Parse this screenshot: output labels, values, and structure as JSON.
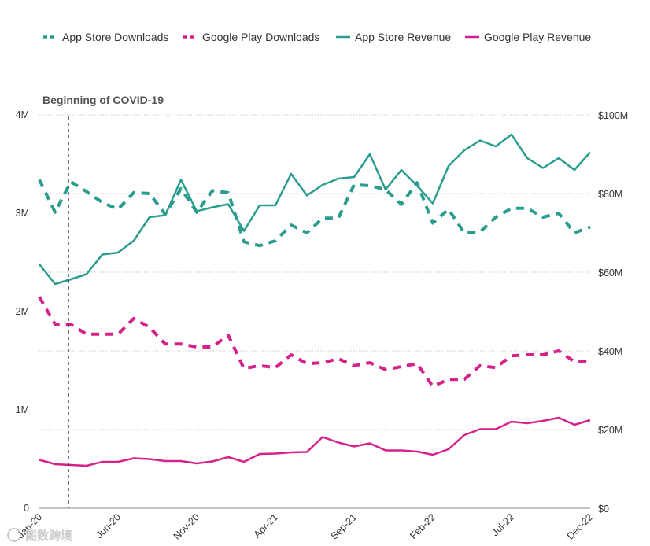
{
  "chart_data": {
    "type": "line",
    "title": "",
    "annotation": "Beginning of COVID-19",
    "annotation_index": 2,
    "x": [
      "Jan-20",
      "Feb-20",
      "Mar-20",
      "Apr-20",
      "May-20",
      "Jun-20",
      "Jul-20",
      "Aug-20",
      "Sep-20",
      "Oct-20",
      "Nov-20",
      "Dec-20",
      "Jan-21",
      "Feb-21",
      "Mar-21",
      "Apr-21",
      "May-21",
      "Jun-21",
      "Jul-21",
      "Aug-21",
      "Sep-21",
      "Oct-21",
      "Nov-21",
      "Dec-21",
      "Jan-22",
      "Feb-22",
      "Mar-22",
      "Apr-22",
      "May-22",
      "Jun-22",
      "Jul-22",
      "Aug-22",
      "Sep-22",
      "Oct-22",
      "Nov-22",
      "Dec-22"
    ],
    "x_tick_labels": [
      {
        "index": 0,
        "label": "Jan-20"
      },
      {
        "index": 5,
        "label": "Jun-20"
      },
      {
        "index": 10,
        "label": "Nov-20"
      },
      {
        "index": 15,
        "label": "Apr-21"
      },
      {
        "index": 20,
        "label": "Sep-21"
      },
      {
        "index": 25,
        "label": "Feb-22"
      },
      {
        "index": 30,
        "label": "Jul-22"
      },
      {
        "index": 35,
        "label": "Dec-22"
      }
    ],
    "y_left": {
      "range": [
        0,
        4000000
      ],
      "ticks": [
        0,
        1000000,
        2000000,
        3000000,
        4000000
      ],
      "tick_labels": [
        "0",
        "1M",
        "2M",
        "3M",
        "4M"
      ]
    },
    "y_right": {
      "range": [
        0,
        100000000
      ],
      "ticks": [
        0,
        20000000,
        40000000,
        60000000,
        80000000,
        100000000
      ],
      "tick_labels": [
        "$0",
        "$20M",
        "$40M",
        "$60M",
        "$80M",
        "$100M"
      ]
    },
    "grid": true,
    "legend_position": "top-left",
    "series": [
      {
        "name": "App Store Downloads",
        "axis": "left",
        "style": "dashed",
        "color": "#2a9d8f",
        "values": [
          3340000,
          3010000,
          3320000,
          3220000,
          3110000,
          3040000,
          3210000,
          3200000,
          2990000,
          3250000,
          3010000,
          3230000,
          3210000,
          2710000,
          2670000,
          2720000,
          2880000,
          2800000,
          2950000,
          2950000,
          3290000,
          3280000,
          3240000,
          3090000,
          3310000,
          2900000,
          3040000,
          2800000,
          2810000,
          2960000,
          3050000,
          3050000,
          2960000,
          3000000,
          2800000,
          2860000
        ]
      },
      {
        "name": "Google Play Downloads",
        "axis": "left",
        "style": "dashed",
        "color": "#d6218b",
        "values": [
          2150000,
          1870000,
          1870000,
          1770000,
          1770000,
          1770000,
          1930000,
          1840000,
          1670000,
          1670000,
          1640000,
          1640000,
          1760000,
          1420000,
          1450000,
          1430000,
          1560000,
          1470000,
          1480000,
          1520000,
          1450000,
          1480000,
          1410000,
          1440000,
          1470000,
          1240000,
          1310000,
          1310000,
          1450000,
          1430000,
          1550000,
          1560000,
          1560000,
          1600000,
          1490000,
          1490000
        ]
      },
      {
        "name": "App Store Revenue",
        "axis": "right",
        "style": "solid",
        "color": "#2a9d8f",
        "values": [
          62000000,
          57000000,
          58200000,
          59500000,
          64500000,
          65000000,
          68000000,
          74000000,
          74500000,
          83500000,
          75500000,
          76500000,
          77300000,
          70500000,
          77000000,
          77000000,
          85000000,
          79500000,
          82200000,
          83800000,
          84200000,
          90000000,
          81000000,
          86000000,
          82000000,
          77500000,
          87000000,
          91000000,
          93500000,
          92000000,
          95000000,
          89000000,
          86500000,
          89000000,
          86000000,
          90500000
        ]
      },
      {
        "name": "Google Play Revenue",
        "axis": "right",
        "style": "solid",
        "color": "#d6218b",
        "values": [
          12300000,
          11200000,
          11000000,
          10800000,
          11800000,
          11800000,
          12700000,
          12500000,
          12000000,
          12000000,
          11400000,
          11900000,
          13000000,
          11800000,
          13800000,
          13900000,
          14200000,
          14300000,
          18100000,
          16700000,
          15700000,
          16500000,
          14700000,
          14700000,
          14400000,
          13600000,
          15000000,
          18600000,
          20100000,
          20100000,
          22000000,
          21600000,
          22200000,
          23000000,
          21200000,
          22400000
        ]
      }
    ]
  },
  "watermark": "图数跨境"
}
